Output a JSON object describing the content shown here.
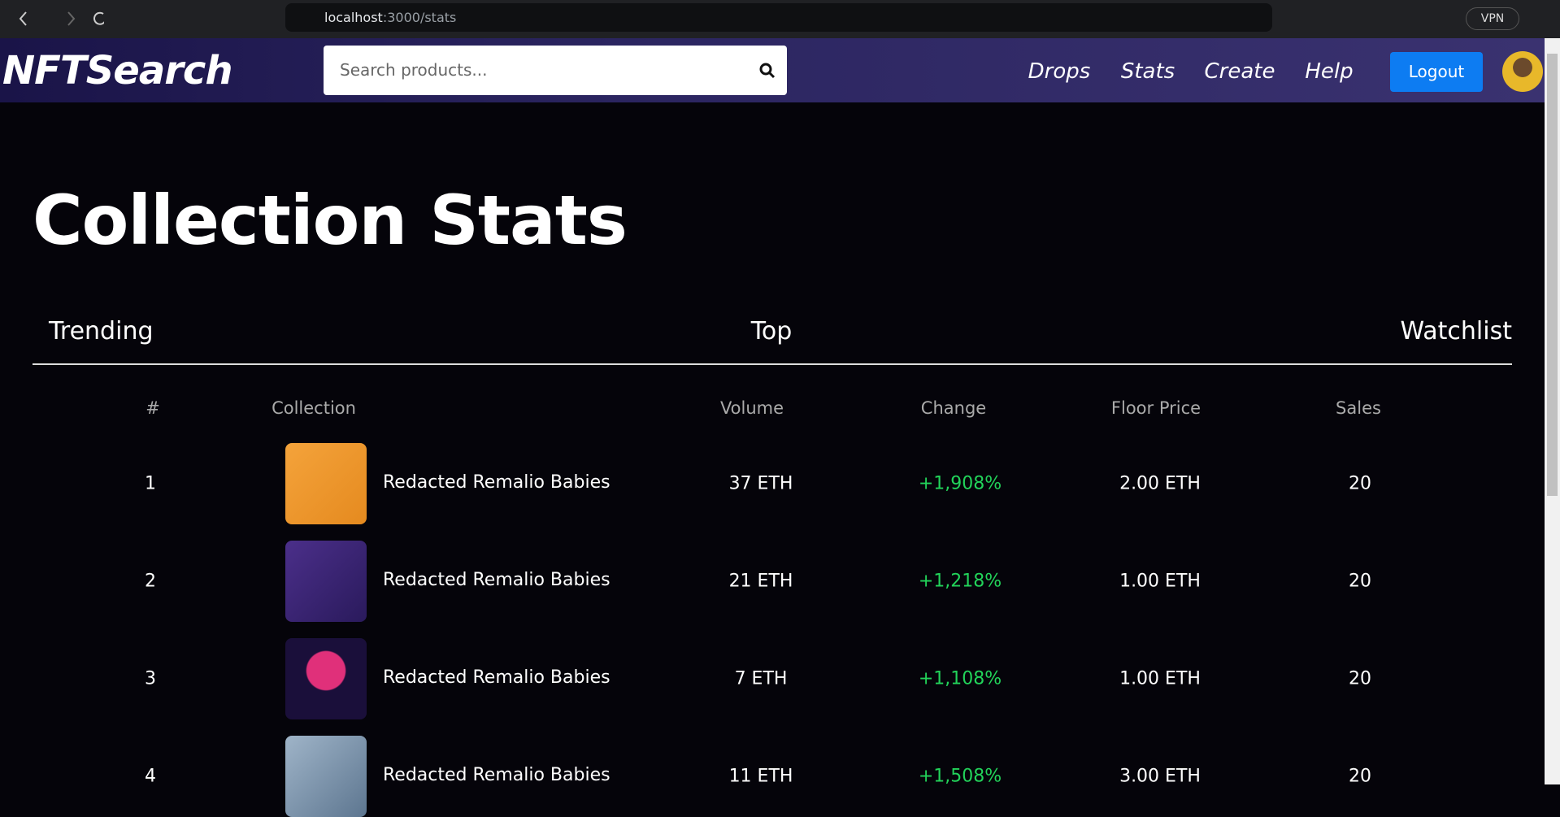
{
  "browser": {
    "url_host": "localhost",
    "url_path": ":3000/stats",
    "vpn": "VPN"
  },
  "navbar": {
    "brand": "NFTSearch",
    "search_placeholder": "Search products...",
    "links": [
      "Drops",
      "Stats",
      "Create",
      "Help"
    ],
    "logout": "Logout"
  },
  "page": {
    "title": "Collection Stats",
    "tabs": [
      "Trending",
      "Top",
      "Watchlist"
    ]
  },
  "table": {
    "headers": [
      "#",
      "Collection",
      "Volume",
      "Change",
      "Floor Price",
      "Sales"
    ],
    "rows": [
      [
        "1",
        "Redacted Remalio Babies",
        "37 ETH",
        "+1,908%",
        "2.00 ETH",
        "20"
      ],
      [
        "2",
        "Redacted Remalio Babies",
        "21 ETH",
        "+1,218%",
        "1.00 ETH",
        "20"
      ],
      [
        "3",
        "Redacted Remalio Babies",
        "7 ETH",
        "+1,108%",
        "1.00 ETH",
        "20"
      ],
      [
        "4",
        "Redacted Remalio Babies",
        "11 ETH",
        "+1,508%",
        "3.00 ETH",
        "20"
      ]
    ]
  }
}
